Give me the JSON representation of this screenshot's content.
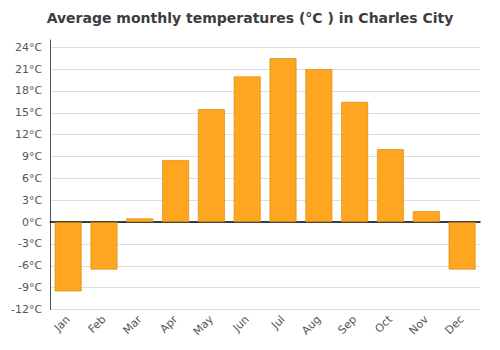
{
  "chart_data": {
    "type": "bar",
    "title": "Average monthly temperatures (°C ) in Charles City",
    "categories": [
      "Jan",
      "Feb",
      "Mar",
      "Apr",
      "May",
      "Jun",
      "Jul",
      "Aug",
      "Sep",
      "Oct",
      "Nov",
      "Dec"
    ],
    "values": [
      -9.5,
      -6.5,
      0.5,
      8.5,
      15.5,
      20.0,
      22.5,
      21.0,
      16.5,
      10.0,
      1.5,
      -6.5
    ],
    "color": "#FFA620",
    "ylim": [
      -12,
      25
    ],
    "yticks": [
      {
        "value": -12,
        "label": "-12°C"
      },
      {
        "value": -9,
        "label": "-9°C"
      },
      {
        "value": -6,
        "label": "-6°C"
      },
      {
        "value": -3,
        "label": "-3°C"
      },
      {
        "value": 0,
        "label": "0°C"
      },
      {
        "value": 3,
        "label": "3°C"
      },
      {
        "value": 6,
        "label": "6°C"
      },
      {
        "value": 9,
        "label": "9°C"
      },
      {
        "value": 12,
        "label": "12°C"
      },
      {
        "value": 15,
        "label": "15°C"
      },
      {
        "value": 18,
        "label": "18°C"
      },
      {
        "value": 21,
        "label": "21°C"
      },
      {
        "value": 24,
        "label": "24°C"
      }
    ],
    "grid": true
  }
}
